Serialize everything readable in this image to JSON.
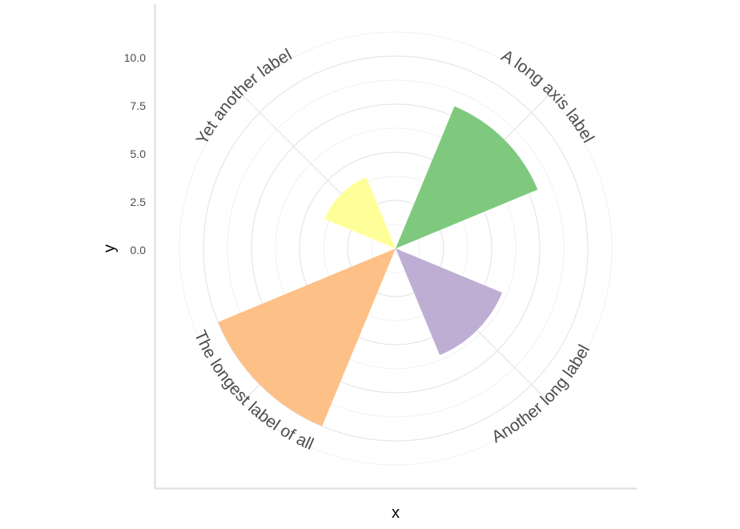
{
  "chart_data": {
    "type": "bar",
    "coord": "curved_polar",
    "title": "",
    "categories": [
      "A long axis label",
      "Another long label",
      "The longest label of all",
      "Yet another label"
    ],
    "values": [
      8,
      6,
      10,
      4
    ],
    "bar_colors": [
      "#7FC97F",
      "#BEAED4",
      "#FDC086",
      "#FFFF99"
    ],
    "palette": "Brewer Accent",
    "xlabel": "x",
    "ylabel": "y",
    "r_tick_labels": [
      "0.0",
      "2.5",
      "5.0",
      "7.5",
      "10.0"
    ],
    "r_tick_values": [
      0,
      2.5,
      5,
      7.5,
      10
    ],
    "r_minor_values": [
      1.25,
      3.75,
      6.25,
      8.75,
      11.25
    ],
    "r_range": [
      0,
      11.25
    ],
    "category_angles_deg": [
      45,
      135,
      225,
      315
    ],
    "bar_width_deg": 45,
    "grid": true,
    "legend": "none",
    "colors": {
      "grid_major": "#E6E6E6",
      "grid_minor": "#F1F1F1",
      "axis_line": "#DDDDDD",
      "tick_text": "#4D4D4D",
      "category_text": "#4D4D4D",
      "title_text": "#000000",
      "background": "#FFFFFF"
    }
  }
}
